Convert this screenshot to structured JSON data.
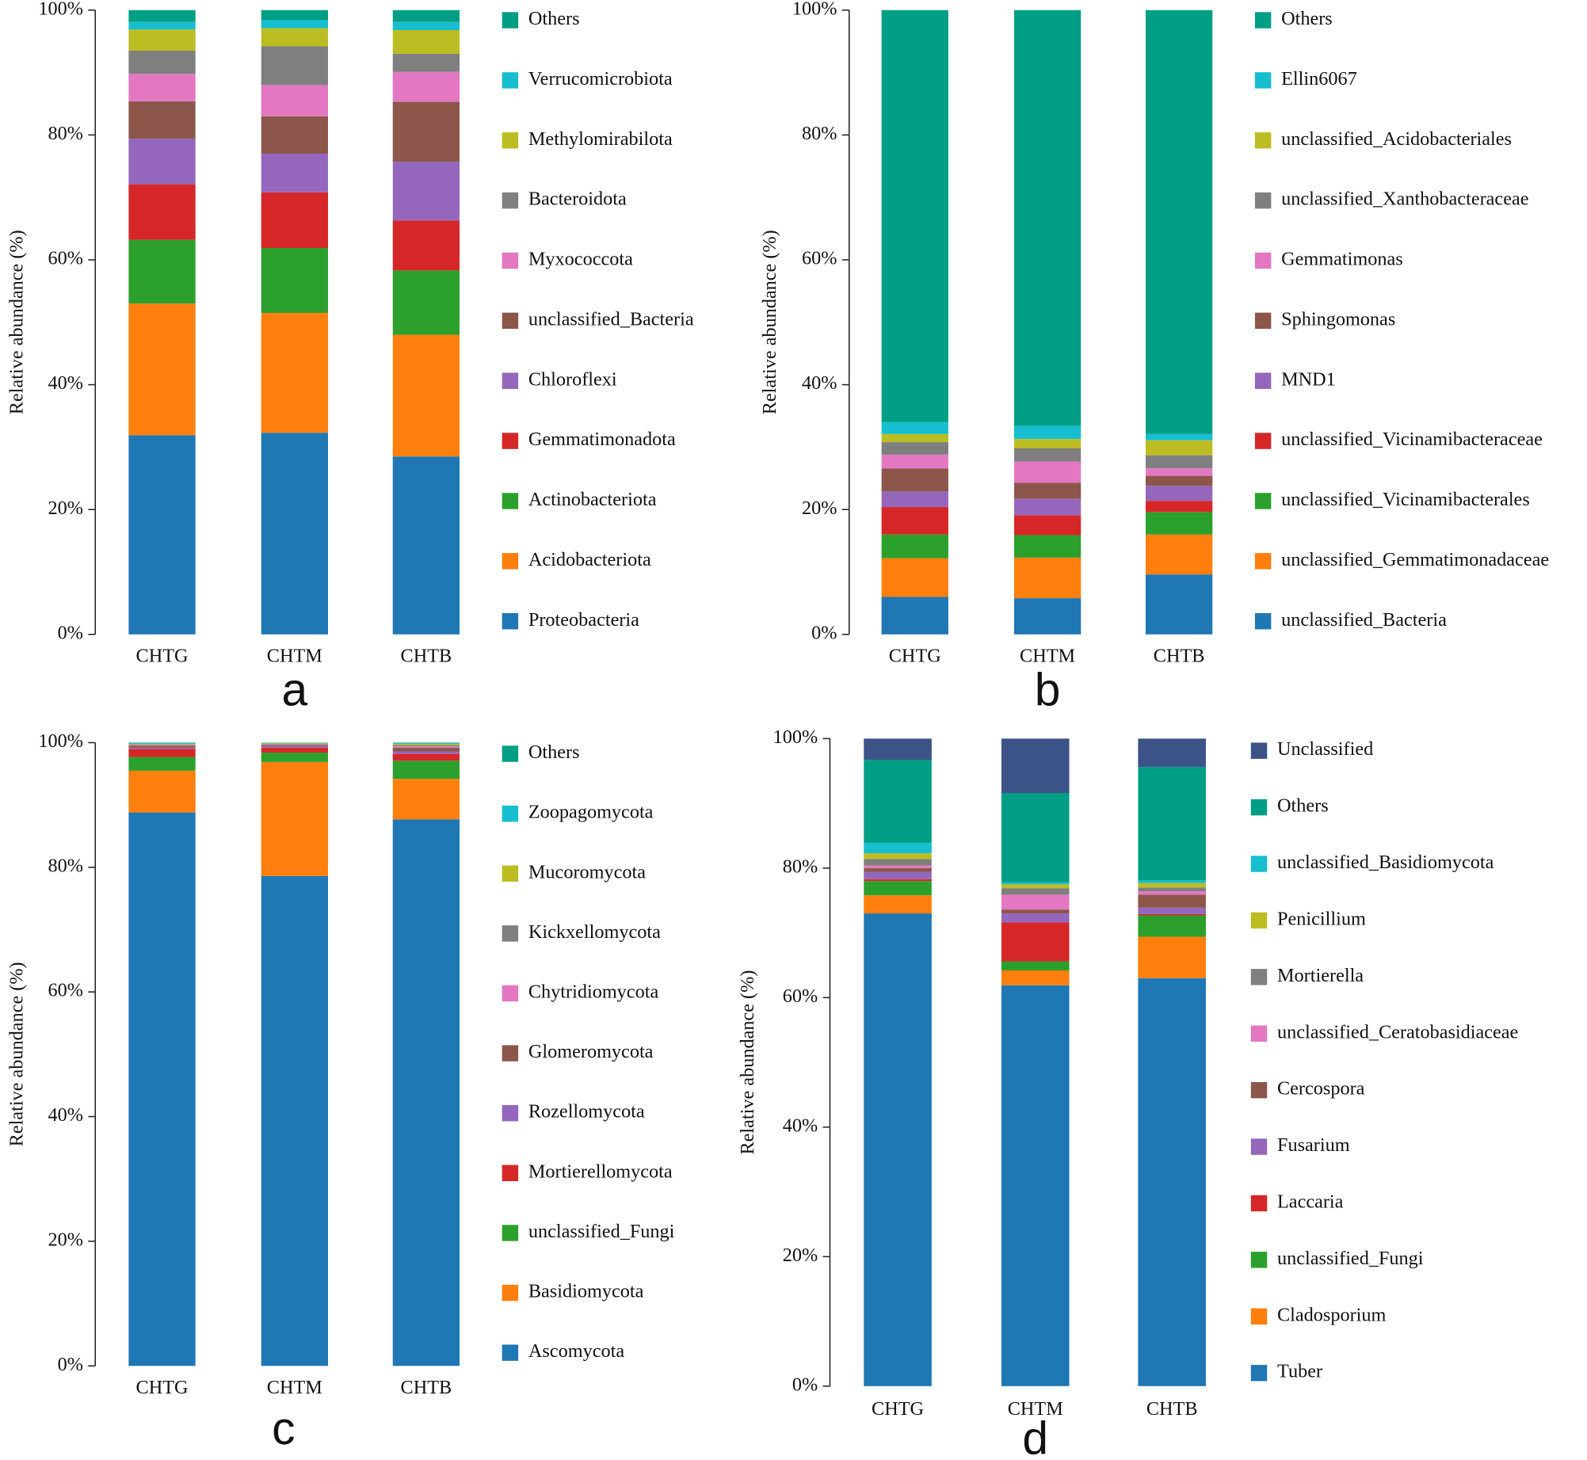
{
  "chart_data": [
    {
      "type": "bar",
      "stacked": true,
      "panel_label": "a",
      "ylabel": "Relative abundance (%)",
      "categories": [
        "CHTG",
        "CHTM",
        "CHTB"
      ],
      "ylim": [
        0,
        100
      ],
      "yticks": [
        {
          "value": 0,
          "label": "0%"
        },
        {
          "value": 20,
          "label": "20%"
        },
        {
          "value": 40,
          "label": "40%"
        },
        {
          "value": 60,
          "label": "60%"
        },
        {
          "value": 80,
          "label": "80%"
        },
        {
          "value": 100,
          "label": "100%"
        }
      ],
      "series": [
        {
          "name": "Proteobacteria",
          "color": "#1f77b4",
          "values": [
            31.9,
            32.3,
            28.5
          ]
        },
        {
          "name": "Acidobacteriota",
          "color": "#ff7f0e",
          "values": [
            21.1,
            19.2,
            19.5
          ]
        },
        {
          "name": "Actinobacteriota",
          "color": "#2ca02c",
          "values": [
            10.2,
            10.4,
            10.3
          ]
        },
        {
          "name": "Gemmatimonadota",
          "color": "#d62728",
          "values": [
            8.9,
            8.9,
            8.0
          ]
        },
        {
          "name": "Chloroflexi",
          "color": "#9467bd",
          "values": [
            7.3,
            6.2,
            9.4
          ]
        },
        {
          "name": "unclassified_Bacteria",
          "color": "#8c564b",
          "values": [
            6.0,
            6.0,
            9.6
          ]
        },
        {
          "name": "Myxococcota",
          "color": "#e377c2",
          "values": [
            4.4,
            5.0,
            4.8
          ]
        },
        {
          "name": "Bacteroidota",
          "color": "#7f7f7f",
          "values": [
            3.7,
            6.2,
            2.9
          ]
        },
        {
          "name": "Methylomirabilota",
          "color": "#bcbd22",
          "values": [
            3.4,
            2.9,
            3.8
          ]
        },
        {
          "name": "Verrucomicrobiota",
          "color": "#17becf",
          "values": [
            1.2,
            1.3,
            1.3
          ]
        },
        {
          "name": "Others",
          "color": "#009e84",
          "values": [
            1.9,
            1.6,
            1.9
          ]
        }
      ]
    },
    {
      "type": "bar",
      "stacked": true,
      "panel_label": "b",
      "ylabel": "Relative abundance (%)",
      "categories": [
        "CHTG",
        "CHTM",
        "CHTB"
      ],
      "ylim": [
        0,
        100
      ],
      "yticks": [
        {
          "value": 0,
          "label": "0%"
        },
        {
          "value": 20,
          "label": "20%"
        },
        {
          "value": 40,
          "label": "40%"
        },
        {
          "value": 60,
          "label": "60%"
        },
        {
          "value": 80,
          "label": "80%"
        },
        {
          "value": 100,
          "label": "100%"
        }
      ],
      "series": [
        {
          "name": "unclassified_Bacteria",
          "color": "#1f77b4",
          "values": [
            6.0,
            5.8,
            9.6
          ]
        },
        {
          "name": "unclassified_Gemmatimonadaceae",
          "color": "#ff7f0e",
          "values": [
            6.2,
            6.5,
            6.4
          ]
        },
        {
          "name": "unclassified_Vicinamibacterales",
          "color": "#2ca02c",
          "values": [
            3.8,
            3.6,
            3.6
          ]
        },
        {
          "name": "unclassified_Vicinamibacteraceae",
          "color": "#d62728",
          "values": [
            4.4,
            3.2,
            1.8
          ]
        },
        {
          "name": "MND1",
          "color": "#9467bd",
          "values": [
            2.5,
            2.6,
            2.4
          ]
        },
        {
          "name": "Sphingomonas",
          "color": "#8c564b",
          "values": [
            3.7,
            2.6,
            1.6
          ]
        },
        {
          "name": "Gemmatimonas",
          "color": "#e377c2",
          "values": [
            2.2,
            3.4,
            1.2
          ]
        },
        {
          "name": "unclassified_Xanthobacteraceae",
          "color": "#7f7f7f",
          "values": [
            2.0,
            2.1,
            2.1
          ]
        },
        {
          "name": "unclassified_Acidobacteriales",
          "color": "#bcbd22",
          "values": [
            1.3,
            1.5,
            2.4
          ]
        },
        {
          "name": "Ellin6067",
          "color": "#17becf",
          "values": [
            1.9,
            2.1,
            1.0
          ]
        },
        {
          "name": "Others",
          "color": "#009e84",
          "values": [
            66.0,
            66.6,
            67.9
          ]
        }
      ]
    },
    {
      "type": "bar",
      "stacked": true,
      "panel_label": "c",
      "ylabel": "Relative abundance (%)",
      "categories": [
        "CHTG",
        "CHTM",
        "CHTB"
      ],
      "ylim": [
        0,
        100
      ],
      "yticks": [
        {
          "value": 0,
          "label": "0%"
        },
        {
          "value": 20,
          "label": "20%"
        },
        {
          "value": 40,
          "label": "40%"
        },
        {
          "value": 60,
          "label": "60%"
        },
        {
          "value": 80,
          "label": "80%"
        },
        {
          "value": 100,
          "label": "100%"
        }
      ],
      "series": [
        {
          "name": "Ascomycota",
          "color": "#1f77b4",
          "values": [
            88.8,
            78.6,
            87.7
          ]
        },
        {
          "name": "Basidiomycota",
          "color": "#ff7f0e",
          "values": [
            6.7,
            18.3,
            6.5
          ]
        },
        {
          "name": "unclassified_Fungi",
          "color": "#2ca02c",
          "values": [
            2.2,
            1.5,
            2.9
          ]
        },
        {
          "name": "Mortierellomycota",
          "color": "#d62728",
          "values": [
            1.3,
            0.8,
            1.1
          ]
        },
        {
          "name": "Rozellomycota",
          "color": "#9467bd",
          "values": [
            0.2,
            0.2,
            0.4
          ]
        },
        {
          "name": "Glomeromycota",
          "color": "#8c564b",
          "values": [
            0.3,
            0.2,
            0.6
          ]
        },
        {
          "name": "Chytridiomycota",
          "color": "#e377c2",
          "values": [
            0.1,
            0.1,
            0.2
          ]
        },
        {
          "name": "Kickxellomycota",
          "color": "#7f7f7f",
          "values": [
            0.1,
            0.1,
            0.2
          ]
        },
        {
          "name": "Mucoromycota",
          "color": "#bcbd22",
          "values": [
            0.1,
            0.1,
            0.2
          ]
        },
        {
          "name": "Zoopagomycota",
          "color": "#17becf",
          "values": [
            0.1,
            0.05,
            0.1
          ]
        },
        {
          "name": "Others",
          "color": "#009e84",
          "values": [
            0.1,
            0.05,
            0.1
          ]
        }
      ]
    },
    {
      "type": "bar",
      "stacked": true,
      "panel_label": "d",
      "ylabel": "Relative abundance (%)",
      "categories": [
        "CHTG",
        "CHTM",
        "CHTB"
      ],
      "ylim": [
        0,
        100
      ],
      "yticks": [
        {
          "value": 0,
          "label": "0%"
        },
        {
          "value": 20,
          "label": "20%"
        },
        {
          "value": 40,
          "label": "40%"
        },
        {
          "value": 60,
          "label": "60%"
        },
        {
          "value": 80,
          "label": "80%"
        },
        {
          "value": 100,
          "label": "100%"
        }
      ],
      "series": [
        {
          "name": "Tuber",
          "color": "#1f77b4",
          "values": [
            73.0,
            61.9,
            63.0
          ]
        },
        {
          "name": "Cladosporium",
          "color": "#ff7f0e",
          "values": [
            2.8,
            2.3,
            6.4
          ]
        },
        {
          "name": "unclassified_Fungi",
          "color": "#2ca02c",
          "values": [
            2.2,
            1.4,
            3.3
          ]
        },
        {
          "name": "Laccaria",
          "color": "#d62728",
          "values": [
            0.3,
            6.0,
            0.2
          ]
        },
        {
          "name": "Fusarium",
          "color": "#9467bd",
          "values": [
            1.1,
            1.4,
            1.0
          ]
        },
        {
          "name": "Cercospora",
          "color": "#8c564b",
          "values": [
            0.6,
            0.6,
            2.0
          ]
        },
        {
          "name": "unclassified_Ceratobasidiaceae",
          "color": "#e377c2",
          "values": [
            0.4,
            2.3,
            0.5
          ]
        },
        {
          "name": "Mortierella",
          "color": "#7f7f7f",
          "values": [
            1.0,
            1.0,
            0.6
          ]
        },
        {
          "name": "Penicillium",
          "color": "#bcbd22",
          "values": [
            0.9,
            0.6,
            0.7
          ]
        },
        {
          "name": "unclassified_Basidiomycota",
          "color": "#17becf",
          "values": [
            1.6,
            0.3,
            0.4
          ]
        },
        {
          "name": "Others",
          "color": "#009e84",
          "values": [
            12.8,
            13.8,
            17.5
          ]
        },
        {
          "name": "Unclassified",
          "color": "#3b5387",
          "values": [
            3.3,
            8.4,
            4.4
          ]
        }
      ]
    }
  ]
}
